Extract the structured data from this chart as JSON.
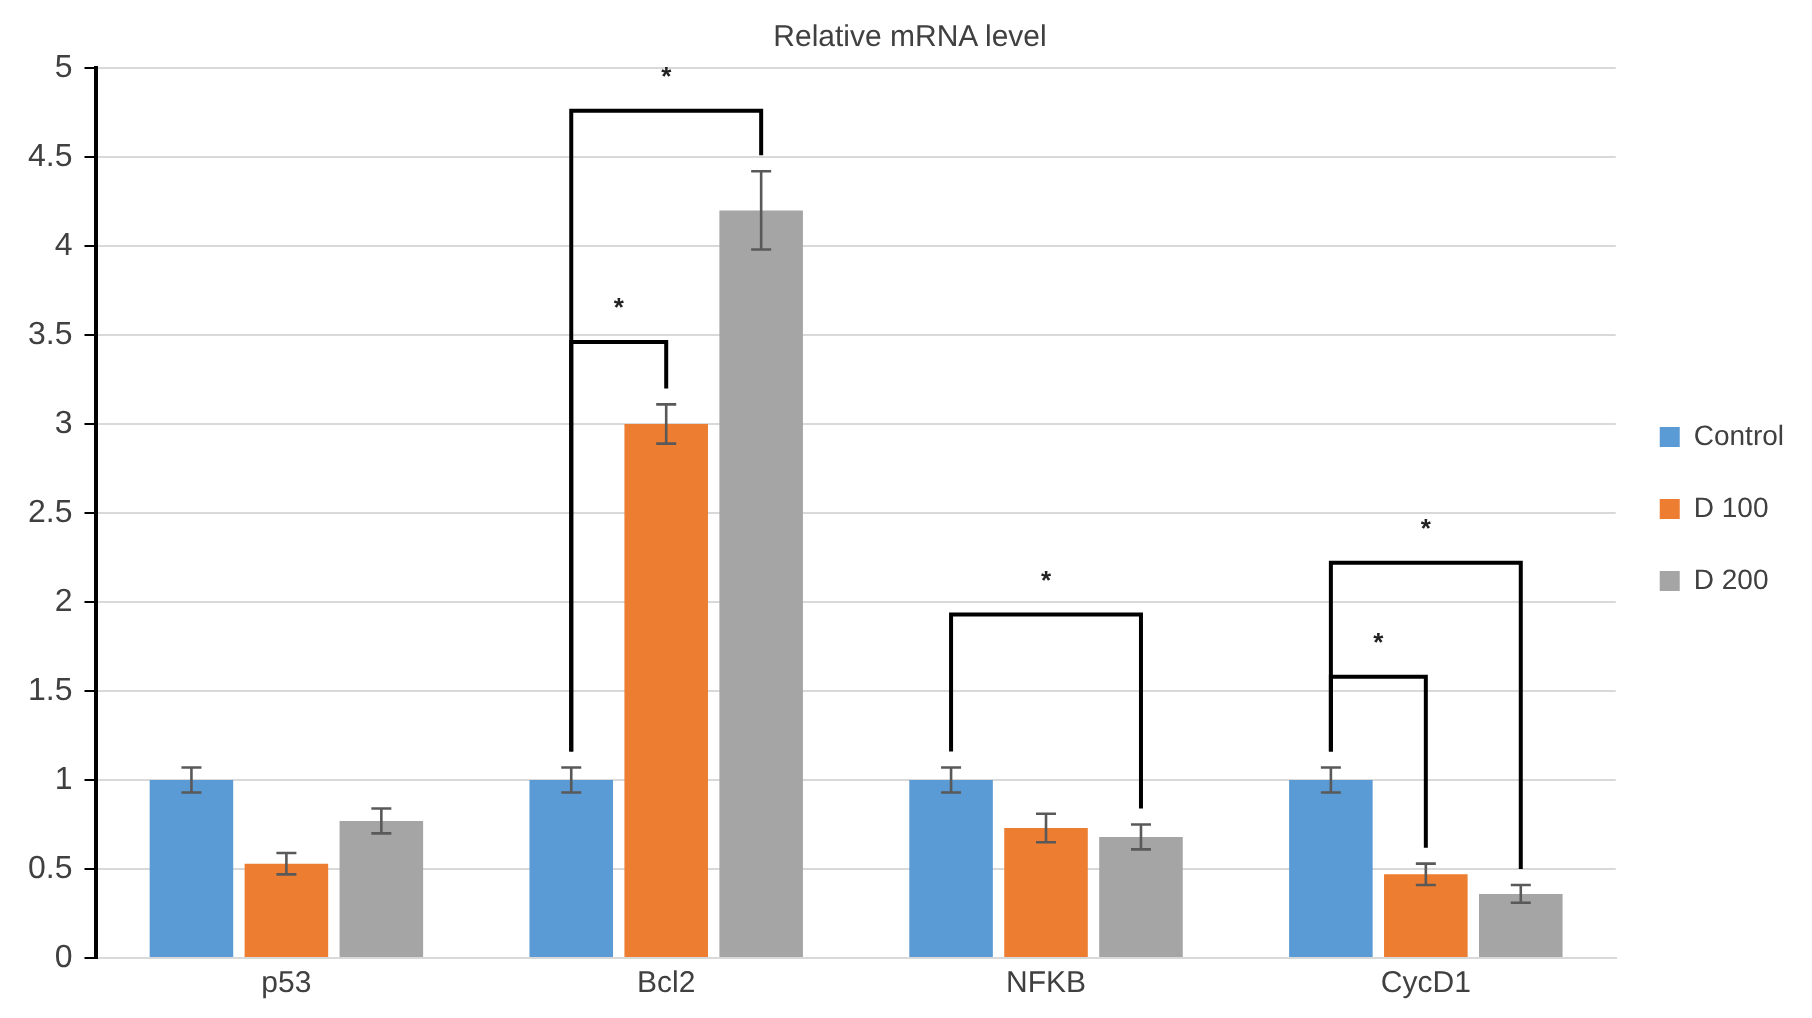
{
  "chart_data": {
    "type": "bar",
    "title": "Relative mRNA level",
    "categories": [
      "p53",
      "Bcl2",
      "NFKB",
      "CycD1"
    ],
    "series": [
      {
        "name": "Control",
        "color": "#5b9bd5",
        "values": [
          1.0,
          1.0,
          1.0,
          1.0
        ],
        "errors": [
          0.07,
          0.07,
          0.07,
          0.07
        ]
      },
      {
        "name": "D 100",
        "color": "#ed7d31",
        "values": [
          0.53,
          3.0,
          0.73,
          0.47
        ],
        "errors": [
          0.06,
          0.11,
          0.08,
          0.06
        ]
      },
      {
        "name": "D 200",
        "color": "#a5a5a5",
        "values": [
          0.77,
          4.2,
          0.68,
          0.36
        ],
        "errors": [
          0.07,
          0.22,
          0.07,
          0.05
        ]
      }
    ],
    "ylim": [
      0,
      5
    ],
    "yticks": [
      0,
      0.5,
      1,
      1.5,
      2,
      2.5,
      3,
      3.5,
      4,
      4.5,
      5
    ],
    "annotations": [
      "*",
      "*",
      "*",
      "*",
      "*"
    ],
    "grid": "y",
    "legend": "right"
  }
}
